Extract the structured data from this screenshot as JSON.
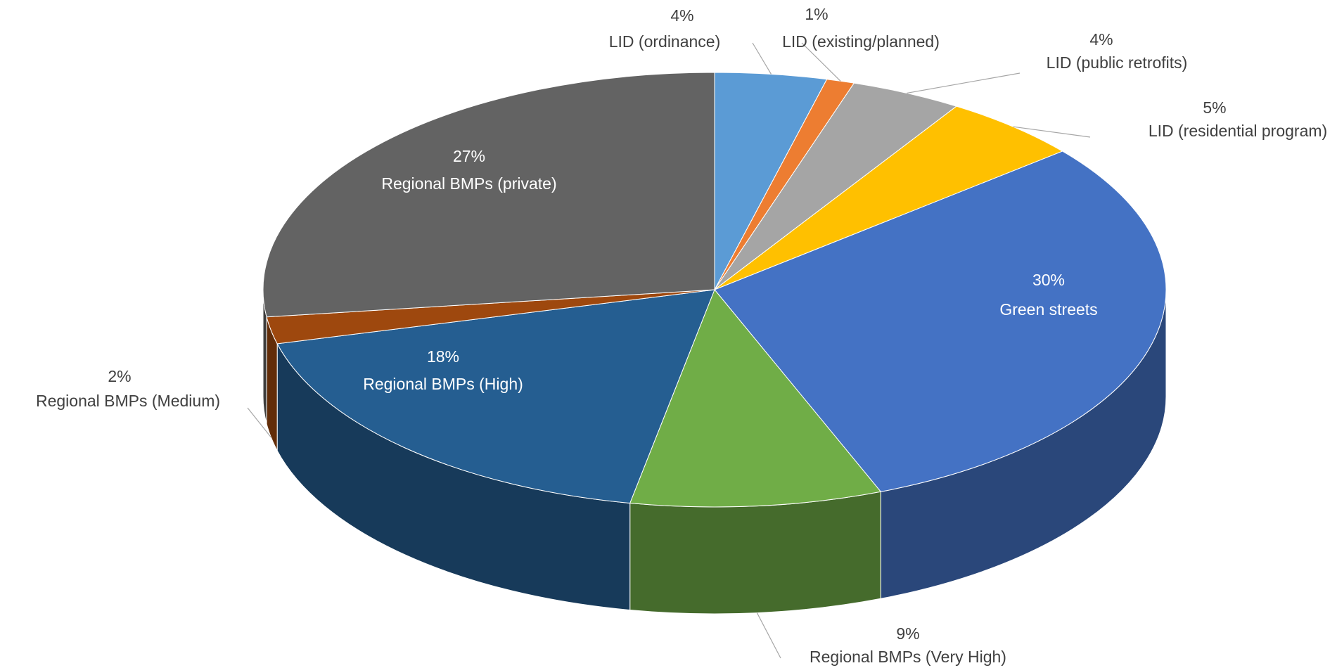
{
  "chart_data": {
    "type": "pie3d",
    "categories": [
      "LID (ordinance)",
      "LID (existing/planned)",
      "LID (public retrofits)",
      "LID (residential program)",
      "Green streets",
      "Regional BMPs (Very High)",
      "Regional BMPs (High)",
      "Regional BMPs (Medium)",
      "Regional BMPs (private)"
    ],
    "values": [
      4,
      1,
      4,
      5,
      30,
      9,
      18,
      2,
      27
    ],
    "value_labels": [
      "4%",
      "1%",
      "4%",
      "5%",
      "30%",
      "9%",
      "18%",
      "2%",
      "27%"
    ],
    "colors": [
      "#5b9bd5",
      "#ed7d31",
      "#a5a5a5",
      "#ffc000",
      "#4472c4",
      "#70ad47",
      "#255e91",
      "#9e480e",
      "#636363"
    ]
  }
}
